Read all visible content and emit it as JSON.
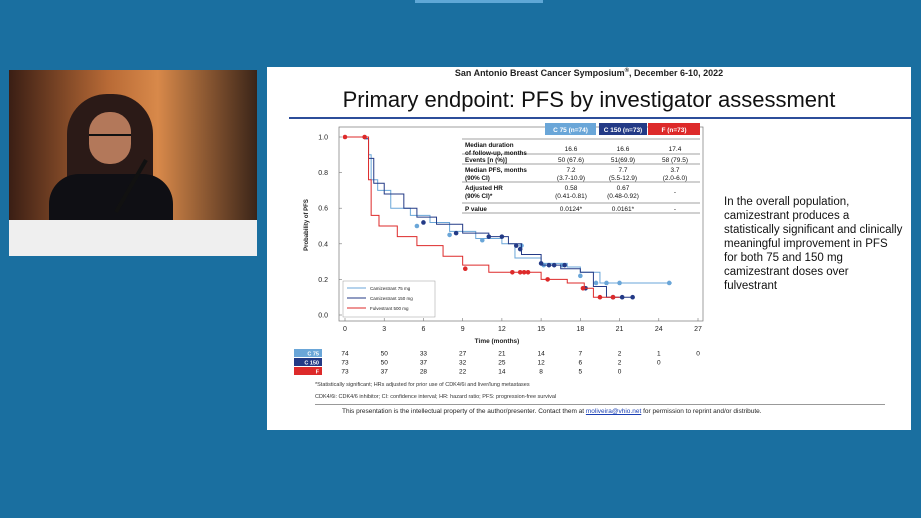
{
  "colors": {
    "c75": "#6aa6d8",
    "c150": "#233a86",
    "f": "#dd2a2a",
    "background": "#1a6fa0",
    "title_rule": "#2c4d9a"
  },
  "slide": {
    "header_prefix": "San Antonio Breast Cancer Symposium",
    "header_mark": "®",
    "header_suffix": ", December 6-10, 2022",
    "title": "Primary endpoint: PFS by investigator assessment",
    "side_text": "In the overall population, camizestrant produces a statistically significant and clinically meaningful improvement in PFS for both 75 and 150 mg camizestrant doses over fulvestrant",
    "footnote1": "*Statistically significant; HRs adjusted for prior use of CDK4/6i and liver/lung metastases",
    "footnote2": "CDK4/6i: CDK4/6 inhibitor; CI: confidence interval; HR: hazard ratio; PFS: progression-free survival",
    "ip_before": "This presentation is the intellectual property of the author/presenter. Contact them at ",
    "ip_email": "moliveira@vhio.net",
    "ip_after": " for permission to reprint and/or distribute."
  },
  "stats_table": {
    "headers": [
      "C 75 (n=74)",
      "C 150 (n=73)",
      "F (n=73)"
    ],
    "rows": [
      {
        "label": [
          "Median duration",
          "of follow-up, months"
        ],
        "values": [
          [
            "16.6"
          ],
          [
            "16.6"
          ],
          [
            "17.4"
          ]
        ]
      },
      {
        "label": [
          "Events [n (%)]"
        ],
        "values": [
          [
            "50 (67.6)"
          ],
          [
            "51(69.9)"
          ],
          [
            "58 (79.5)"
          ]
        ]
      },
      {
        "label": [
          "Median PFS, months",
          "(90% CI)"
        ],
        "values": [
          [
            "7.2",
            "(3.7-10.9)"
          ],
          [
            "7.7",
            "(5.5-12.9)"
          ],
          [
            "3.7",
            "(2.0-6.0)"
          ]
        ]
      },
      {
        "label": [
          "Adjusted HR",
          "(90% CI)*"
        ],
        "values": [
          [
            "0.58",
            "(0.41-0.81)"
          ],
          [
            "0.67",
            "(0.48-0.92)"
          ],
          [
            "-"
          ]
        ]
      },
      {
        "label": [
          "P value"
        ],
        "values": [
          [
            "0.0124*"
          ],
          [
            "0.0161*"
          ],
          [
            "-"
          ]
        ]
      }
    ]
  },
  "risk_table": {
    "groups": [
      {
        "tag": "C 75",
        "counts": [
          "74",
          "50",
          "33",
          "27",
          "21",
          "14",
          "7",
          "2",
          "1",
          "0"
        ]
      },
      {
        "tag": "C 150",
        "counts": [
          "73",
          "50",
          "37",
          "32",
          "25",
          "12",
          "6",
          "2",
          "0"
        ]
      },
      {
        "tag": "F",
        "counts": [
          "73",
          "37",
          "28",
          "22",
          "14",
          "8",
          "5",
          "0"
        ]
      }
    ]
  },
  "chart_data": {
    "type": "line",
    "title": "",
    "xlabel": "Time (months)",
    "ylabel": "Probability of PFS",
    "xlim": [
      0,
      27
    ],
    "ylim": [
      0,
      1
    ],
    "x_ticks": [
      0,
      3,
      6,
      9,
      12,
      15,
      18,
      21,
      24,
      27
    ],
    "y_ticks": [
      "0.0",
      "0.2",
      "0.4",
      "0.6",
      "0.8",
      "1.0"
    ],
    "legend_position": "bottom-left",
    "series": [
      {
        "name": "Camizestrant 75 mg",
        "color": "#6aa6d8",
        "points": [
          [
            0,
            1
          ],
          [
            1.5,
            0.99
          ],
          [
            1.8,
            0.9
          ],
          [
            2,
            0.76
          ],
          [
            2.5,
            0.7
          ],
          [
            3.5,
            0.6
          ],
          [
            5,
            0.56
          ],
          [
            6.5,
            0.52
          ],
          [
            8,
            0.47
          ],
          [
            10,
            0.43
          ],
          [
            12,
            0.4
          ],
          [
            13,
            0.32
          ],
          [
            15,
            0.29
          ],
          [
            17,
            0.27
          ],
          [
            18,
            0.24
          ],
          [
            19.5,
            0.18
          ],
          [
            21,
            0.18
          ],
          [
            25,
            0.18
          ]
        ],
        "censors": [
          [
            5.5,
            0.5
          ],
          [
            8,
            0.45
          ],
          [
            10.5,
            0.42
          ],
          [
            13.5,
            0.39
          ],
          [
            15.2,
            0.28
          ],
          [
            16.6,
            0.28
          ],
          [
            18,
            0.22
          ],
          [
            19.2,
            0.18
          ],
          [
            20,
            0.18
          ],
          [
            21,
            0.18
          ],
          [
            24.8,
            0.18
          ]
        ]
      },
      {
        "name": "Camizestrant 150 mg",
        "color": "#233a86",
        "points": [
          [
            0,
            1
          ],
          [
            1.5,
            0.99
          ],
          [
            1.8,
            0.88
          ],
          [
            2.2,
            0.74
          ],
          [
            3,
            0.68
          ],
          [
            4.5,
            0.6
          ],
          [
            5.5,
            0.55
          ],
          [
            7,
            0.51
          ],
          [
            9,
            0.46
          ],
          [
            11,
            0.44
          ],
          [
            12.5,
            0.4
          ],
          [
            13.5,
            0.34
          ],
          [
            15,
            0.28
          ],
          [
            16.5,
            0.26
          ],
          [
            18,
            0.24
          ],
          [
            19,
            0.16
          ],
          [
            20,
            0.1
          ],
          [
            22,
            0.1
          ]
        ],
        "censors": [
          [
            6,
            0.52
          ],
          [
            8.5,
            0.46
          ],
          [
            11,
            0.44
          ],
          [
            12,
            0.44
          ],
          [
            13.1,
            0.39
          ],
          [
            13.4,
            0.37
          ],
          [
            15,
            0.29
          ],
          [
            15.6,
            0.28
          ],
          [
            16,
            0.28
          ],
          [
            16.8,
            0.28
          ],
          [
            18.4,
            0.15
          ],
          [
            20.5,
            0.1
          ],
          [
            21.2,
            0.1
          ],
          [
            22,
            0.1
          ]
        ]
      },
      {
        "name": "Fulvestrant 500 mg",
        "color": "#dd2a2a",
        "points": [
          [
            0,
            1
          ],
          [
            1.5,
            1
          ],
          [
            1.8,
            0.76
          ],
          [
            2,
            0.56
          ],
          [
            2.6,
            0.5
          ],
          [
            4,
            0.44
          ],
          [
            5.5,
            0.39
          ],
          [
            7.5,
            0.33
          ],
          [
            9,
            0.28
          ],
          [
            11,
            0.24
          ],
          [
            13,
            0.24
          ],
          [
            15,
            0.2
          ],
          [
            17,
            0.18
          ],
          [
            18.3,
            0.15
          ],
          [
            19,
            0.1
          ],
          [
            21,
            0.1
          ]
        ],
        "censors": [
          [
            0,
            1
          ],
          [
            1.5,
            1
          ],
          [
            9.2,
            0.26
          ],
          [
            12.8,
            0.24
          ],
          [
            13.4,
            0.24
          ],
          [
            13.7,
            0.24
          ],
          [
            14,
            0.24
          ],
          [
            15.5,
            0.2
          ],
          [
            18.2,
            0.15
          ],
          [
            19.5,
            0.1
          ],
          [
            20.5,
            0.1
          ]
        ]
      }
    ]
  }
}
